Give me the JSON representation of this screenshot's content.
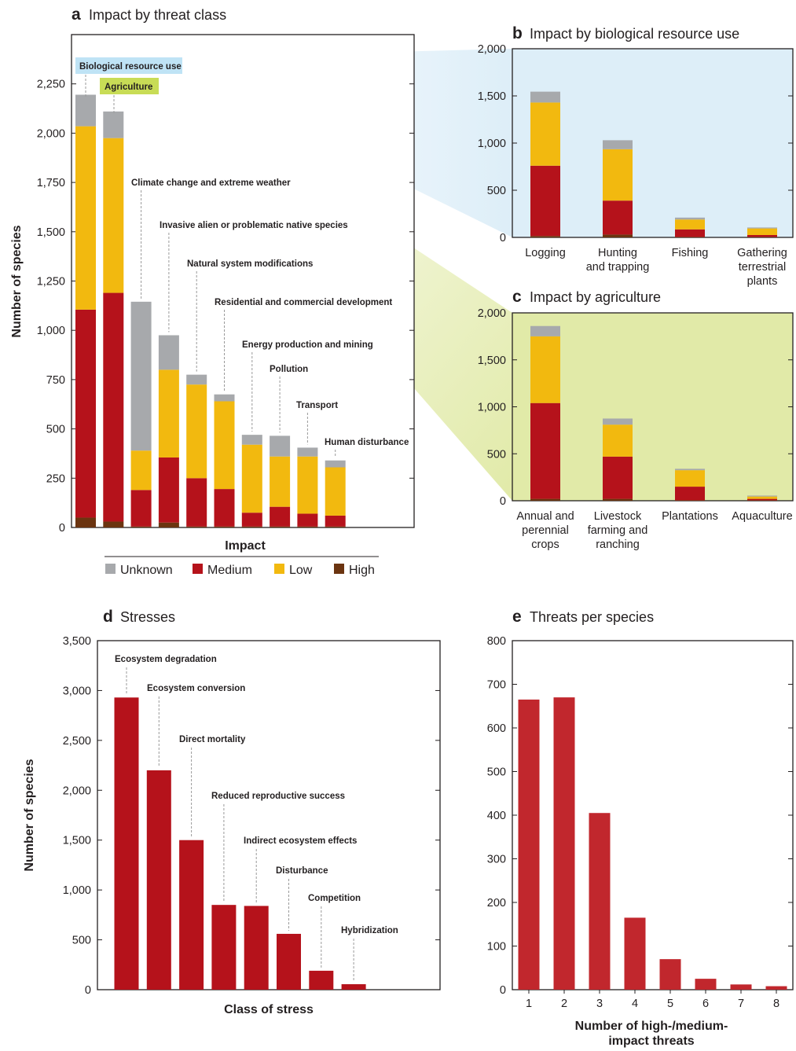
{
  "legend": {
    "title": "Impact",
    "items": [
      {
        "label": "Unknown",
        "color": "#a7a9ac"
      },
      {
        "label": "Medium",
        "color": "#b5121b"
      },
      {
        "label": "Low",
        "color": "#f2b90f"
      },
      {
        "label": "High",
        "color": "#6b3410"
      }
    ]
  },
  "chart_data": [
    {
      "id": "a",
      "type": "bar",
      "stacked": true,
      "letter": "a",
      "title": "Impact by threat class",
      "ylabel": "Number of species",
      "xlabel": "",
      "ylim": [
        0,
        2500
      ],
      "yticks": [
        0,
        250,
        500,
        750,
        1000,
        1250,
        1500,
        1750,
        2000,
        2250
      ],
      "ytick_labels": [
        "0",
        "250",
        "500",
        "750",
        "1,000",
        "1,250",
        "1,500",
        "1,750",
        "2,000",
        "2,250"
      ],
      "categories": [
        "Biological resource use",
        "Agriculture",
        "Climate change and extreme weather",
        "Invasive alien or problematic native species",
        "Natural system modifications",
        "Residential and commercial development",
        "Energy production and mining",
        "Pollution",
        "Transport",
        "Human disturbance"
      ],
      "series": [
        {
          "name": "High",
          "values": [
            50,
            30,
            5,
            25,
            5,
            5,
            5,
            5,
            5,
            5
          ]
        },
        {
          "name": "Medium",
          "values": [
            1055,
            1160,
            185,
            330,
            245,
            190,
            70,
            100,
            65,
            55
          ]
        },
        {
          "name": "Low",
          "values": [
            930,
            785,
            200,
            445,
            475,
            445,
            345,
            255,
            290,
            245
          ]
        },
        {
          "name": "Unknown",
          "values": [
            160,
            135,
            755,
            175,
            50,
            35,
            50,
            105,
            45,
            35
          ]
        }
      ],
      "totals": [
        2195,
        2110,
        1145,
        975,
        775,
        675,
        470,
        465,
        405,
        340
      ],
      "highlight": [
        {
          "label": "Biological resource use",
          "color": "#bfe3f5"
        },
        {
          "label": "Agriculture",
          "color": "#c8dc56"
        }
      ]
    },
    {
      "id": "b",
      "type": "bar",
      "stacked": true,
      "letter": "b",
      "title": "Impact by biological resource use",
      "ylim": [
        0,
        2000
      ],
      "yticks": [
        0,
        500,
        1000,
        1500,
        2000
      ],
      "ytick_labels": [
        "0",
        "500",
        "1,000",
        "1,500",
        "2,000"
      ],
      "background": "#ddeef8",
      "categories": [
        [
          "Logging"
        ],
        [
          "Hunting",
          "and trapping"
        ],
        [
          "Fishing"
        ],
        [
          "Gathering",
          "terrestrial",
          "plants"
        ]
      ],
      "series": [
        {
          "name": "High",
          "values": [
            15,
            30,
            5,
            5
          ]
        },
        {
          "name": "Medium",
          "values": [
            745,
            360,
            80,
            20
          ]
        },
        {
          "name": "Low",
          "values": [
            670,
            545,
            105,
            70
          ]
        },
        {
          "name": "Unknown",
          "values": [
            115,
            95,
            20,
            10
          ]
        }
      ]
    },
    {
      "id": "c",
      "type": "bar",
      "stacked": true,
      "letter": "c",
      "title": "Impact by agriculture",
      "ylim": [
        0,
        2000
      ],
      "yticks": [
        0,
        500,
        1000,
        1500,
        2000
      ],
      "ytick_labels": [
        "0",
        "500",
        "1,000",
        "1,500",
        "2,000"
      ],
      "background": "#e1eaa8",
      "categories": [
        [
          "Annual and",
          "perennial",
          "crops"
        ],
        [
          "Livestock",
          "farming and",
          "ranching"
        ],
        [
          "Plantations"
        ],
        [
          "Aquaculture"
        ]
      ],
      "series": [
        {
          "name": "High",
          "values": [
            20,
            20,
            5,
            5
          ]
        },
        {
          "name": "Medium",
          "values": [
            1020,
            450,
            145,
            15
          ]
        },
        {
          "name": "Low",
          "values": [
            710,
            340,
            175,
            25
          ]
        },
        {
          "name": "Unknown",
          "values": [
            110,
            65,
            15,
            10
          ]
        }
      ]
    },
    {
      "id": "d",
      "type": "bar",
      "letter": "d",
      "title": "Stresses",
      "ylabel": "Number of species",
      "xlabel": "Class of stress",
      "ylim": [
        0,
        3500
      ],
      "yticks": [
        0,
        500,
        1000,
        1500,
        2000,
        2500,
        3000,
        3500
      ],
      "ytick_labels": [
        "0",
        "500",
        "1,000",
        "1,500",
        "2,000",
        "2,500",
        "3,000",
        "3,500"
      ],
      "color": "#b5121b",
      "categories": [
        "Ecosystem degradation",
        "Ecosystem conversion",
        "Direct mortality",
        "Reduced reproductive success",
        "Indirect ecosystem effects",
        "Disturbance",
        "Competition",
        "Hybridization"
      ],
      "values": [
        2930,
        2200,
        1500,
        850,
        840,
        560,
        190,
        55
      ]
    },
    {
      "id": "e",
      "type": "bar",
      "letter": "e",
      "title": "Threats per species",
      "xlabel": "Number of high-/medium-\nimpact threats",
      "ylim": [
        0,
        800
      ],
      "yticks": [
        0,
        100,
        200,
        300,
        400,
        500,
        600,
        700,
        800
      ],
      "ytick_labels": [
        "0",
        "100",
        "200",
        "300",
        "400",
        "500",
        "600",
        "700",
        "800"
      ],
      "color": "#c1272d",
      "categories": [
        "1",
        "2",
        "3",
        "4",
        "5",
        "6",
        "7",
        "8"
      ],
      "values": [
        665,
        670,
        405,
        165,
        70,
        25,
        12,
        8
      ]
    }
  ]
}
